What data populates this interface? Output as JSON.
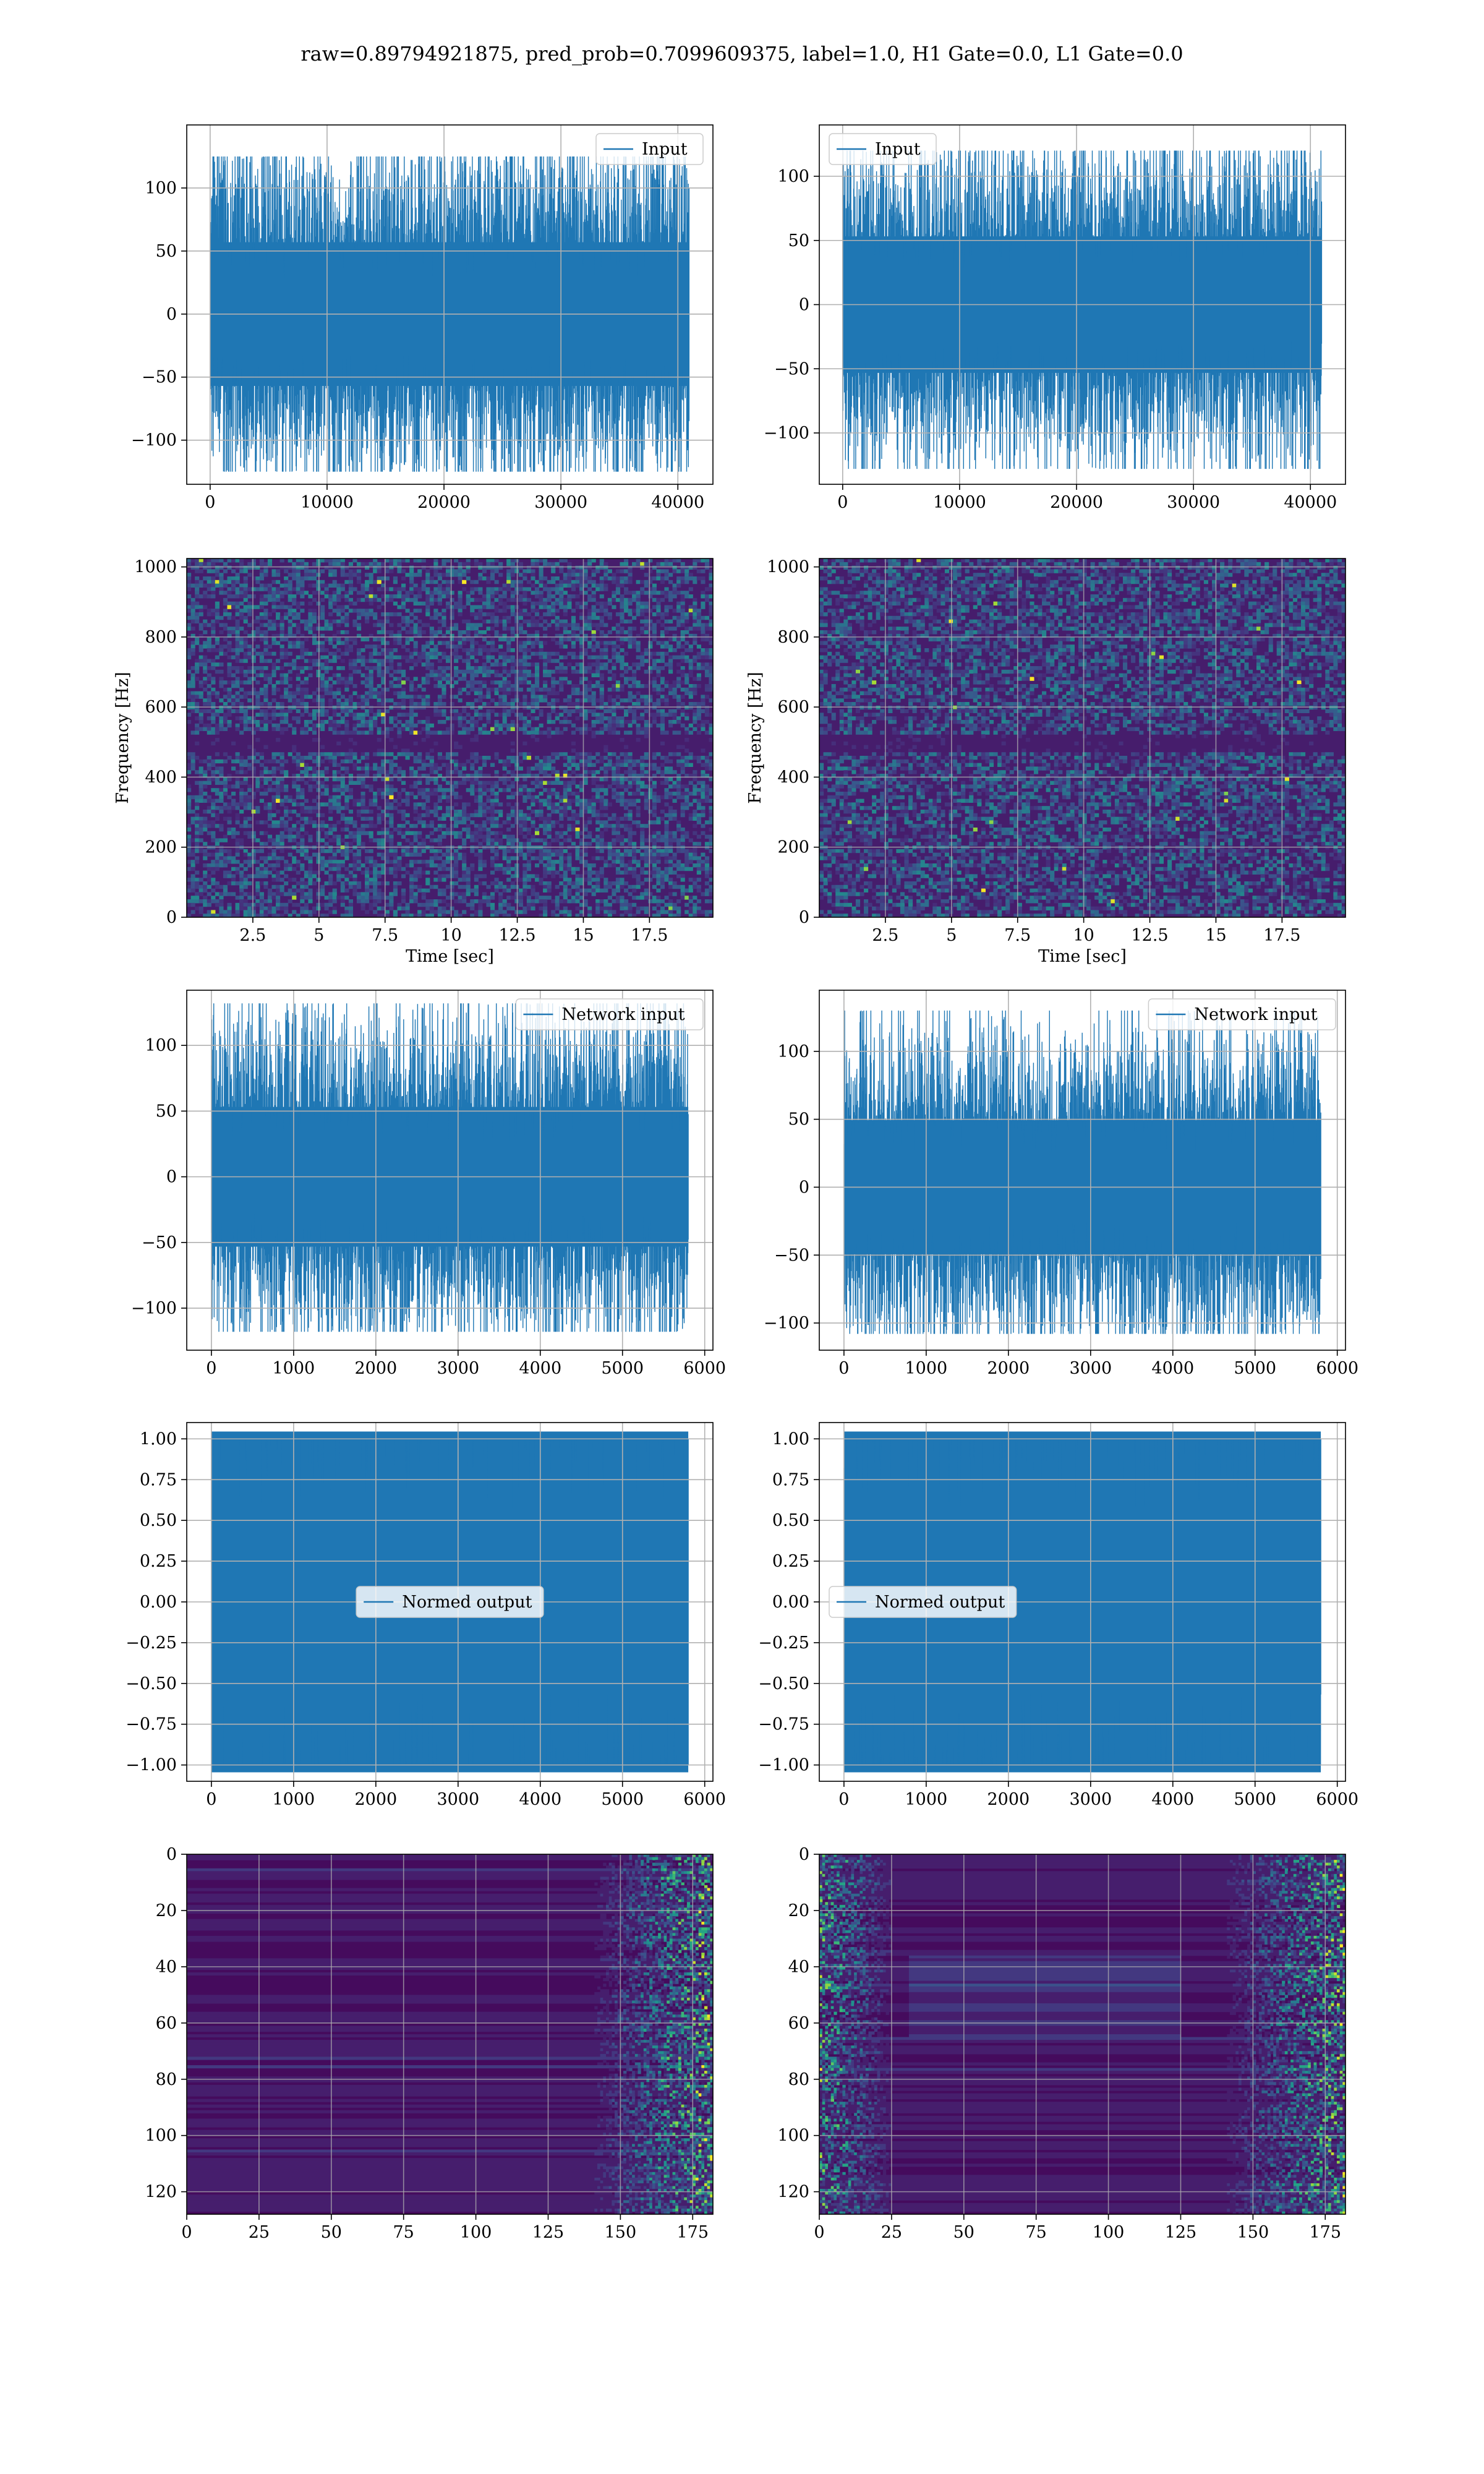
{
  "suptitle": "raw=0.89794921875, pred_prob=0.7099609375, label=1.0, H1 Gate=0.0, L1 Gate=0.0",
  "colors": {
    "series": "#1f77b4",
    "grid": "#b0b0b0",
    "axis": "#000000",
    "colormap": "viridis"
  },
  "chart_data": [
    {
      "type": "line",
      "row": 1,
      "col": 1,
      "legend_label": "Input",
      "legend_loc": "upper right",
      "xlim": [
        -2000,
        43000
      ],
      "ylim": [
        -135,
        150
      ],
      "xticks": [
        0,
        10000,
        20000,
        30000,
        40000
      ],
      "yticks": [
        -100,
        -50,
        0,
        50,
        100
      ],
      "x_range": [
        0,
        40960
      ],
      "n_points": 40960,
      "y_min": -125,
      "y_max": 125,
      "y_std": 30,
      "seed": 11,
      "xlabel": "",
      "ylabel": "",
      "grid": true
    },
    {
      "type": "line",
      "row": 1,
      "col": 2,
      "legend_label": "Input",
      "legend_loc": "upper left",
      "xlim": [
        -2000,
        43000
      ],
      "ylim": [
        -140,
        140
      ],
      "xticks": [
        0,
        10000,
        20000,
        30000,
        40000
      ],
      "yticks": [
        -100,
        -50,
        0,
        50,
        100
      ],
      "x_range": [
        0,
        40960
      ],
      "n_points": 40960,
      "y_min": -128,
      "y_max": 120,
      "y_std": 28,
      "seed": 23,
      "xlabel": "",
      "ylabel": "",
      "grid": true
    },
    {
      "type": "heatmap",
      "row": 2,
      "col": 1,
      "colormap": "viridis",
      "xlim": [
        0,
        19.9
      ],
      "ylim": [
        0,
        1024
      ],
      "xticks": [
        2.5,
        5.0,
        7.5,
        10.0,
        12.5,
        15.0,
        17.5
      ],
      "yticks": [
        0,
        200,
        400,
        600,
        800,
        1000
      ],
      "xlabel": "Time [sec]",
      "ylabel": "Frequency [Hz]",
      "grid": true,
      "dark_band_hz": [
        470,
        520
      ],
      "pattern": "spectrogram",
      "seed": 5
    },
    {
      "type": "heatmap",
      "row": 2,
      "col": 2,
      "colormap": "viridis",
      "xlim": [
        0,
        19.9
      ],
      "ylim": [
        0,
        1024
      ],
      "xticks": [
        2.5,
        5.0,
        7.5,
        10.0,
        12.5,
        15.0,
        17.5
      ],
      "yticks": [
        0,
        200,
        400,
        600,
        800,
        1000
      ],
      "xlabel": "Time [sec]",
      "ylabel": "Frequency [Hz]",
      "grid": true,
      "dark_band_hz": [
        470,
        520
      ],
      "pattern": "spectrogram",
      "seed": 9
    },
    {
      "type": "line",
      "row": 3,
      "col": 1,
      "legend_label": "Network input",
      "legend_loc": "upper right",
      "xlim": [
        -300,
        6100
      ],
      "ylim": [
        -132,
        142
      ],
      "xticks": [
        0,
        1000,
        2000,
        3000,
        4000,
        5000,
        6000
      ],
      "yticks": [
        -100,
        -50,
        0,
        50,
        100
      ],
      "x_range": [
        0,
        5800
      ],
      "n_points": 5800,
      "y_min": -118,
      "y_max": 132,
      "y_std": 28,
      "seed": 37,
      "xlabel": "",
      "ylabel": "",
      "grid": true
    },
    {
      "type": "line",
      "row": 3,
      "col": 2,
      "legend_label": "Network input",
      "legend_loc": "upper right",
      "xlim": [
        -300,
        6100
      ],
      "ylim": [
        -120,
        145
      ],
      "xticks": [
        0,
        1000,
        2000,
        3000,
        4000,
        5000,
        6000
      ],
      "yticks": [
        -100,
        -50,
        0,
        50,
        100
      ],
      "x_range": [
        0,
        5800
      ],
      "n_points": 5800,
      "y_min": -108,
      "y_max": 130,
      "y_std": 26,
      "seed": 41,
      "xlabel": "",
      "ylabel": "",
      "grid": true
    },
    {
      "type": "line",
      "row": 4,
      "col": 1,
      "legend_label": "Normed output",
      "legend_loc": "center",
      "xlim": [
        -300,
        6100
      ],
      "ylim": [
        -1.1,
        1.1
      ],
      "xticks": [
        0,
        1000,
        2000,
        3000,
        4000,
        5000,
        6000
      ],
      "yticks": [
        -1.0,
        -0.75,
        -0.5,
        -0.25,
        0.0,
        0.25,
        0.5,
        0.75,
        1.0
      ],
      "x_range": [
        0,
        5800
      ],
      "n_points": 5800,
      "y_min": -1.0,
      "y_max": 1.0,
      "y_std": 0.55,
      "seed": 53,
      "xlabel": "",
      "ylabel": "",
      "grid": true
    },
    {
      "type": "line",
      "row": 4,
      "col": 2,
      "legend_label": "Normed output",
      "legend_loc": "center left",
      "xlim": [
        -300,
        6100
      ],
      "ylim": [
        -1.1,
        1.1
      ],
      "xticks": [
        0,
        1000,
        2000,
        3000,
        4000,
        5000,
        6000
      ],
      "yticks": [
        -1.0,
        -0.75,
        -0.5,
        -0.25,
        0.0,
        0.25,
        0.5,
        0.75,
        1.0
      ],
      "x_range": [
        0,
        5800
      ],
      "n_points": 5800,
      "y_min": -1.0,
      "y_max": 1.0,
      "y_std": 0.55,
      "seed": 61,
      "xlabel": "",
      "ylabel": "",
      "grid": true
    },
    {
      "type": "heatmap",
      "row": 5,
      "col": 1,
      "colormap": "viridis",
      "xlim": [
        0,
        182
      ],
      "ylim": [
        128,
        0
      ],
      "xticks": [
        0,
        25,
        50,
        75,
        100,
        125,
        150,
        175
      ],
      "yticks": [
        0,
        20,
        40,
        60,
        80,
        100,
        120
      ],
      "xlabel": "",
      "ylabel": "",
      "grid": true,
      "pattern": "activation-right",
      "seed": 71
    },
    {
      "type": "heatmap",
      "row": 5,
      "col": 2,
      "colormap": "viridis",
      "xlim": [
        0,
        182
      ],
      "ylim": [
        128,
        0
      ],
      "xticks": [
        0,
        25,
        50,
        75,
        100,
        125,
        150,
        175
      ],
      "yticks": [
        0,
        20,
        40,
        60,
        80,
        100,
        120
      ],
      "xlabel": "",
      "ylabel": "",
      "grid": true,
      "pattern": "activation-both",
      "seed": 83
    }
  ]
}
